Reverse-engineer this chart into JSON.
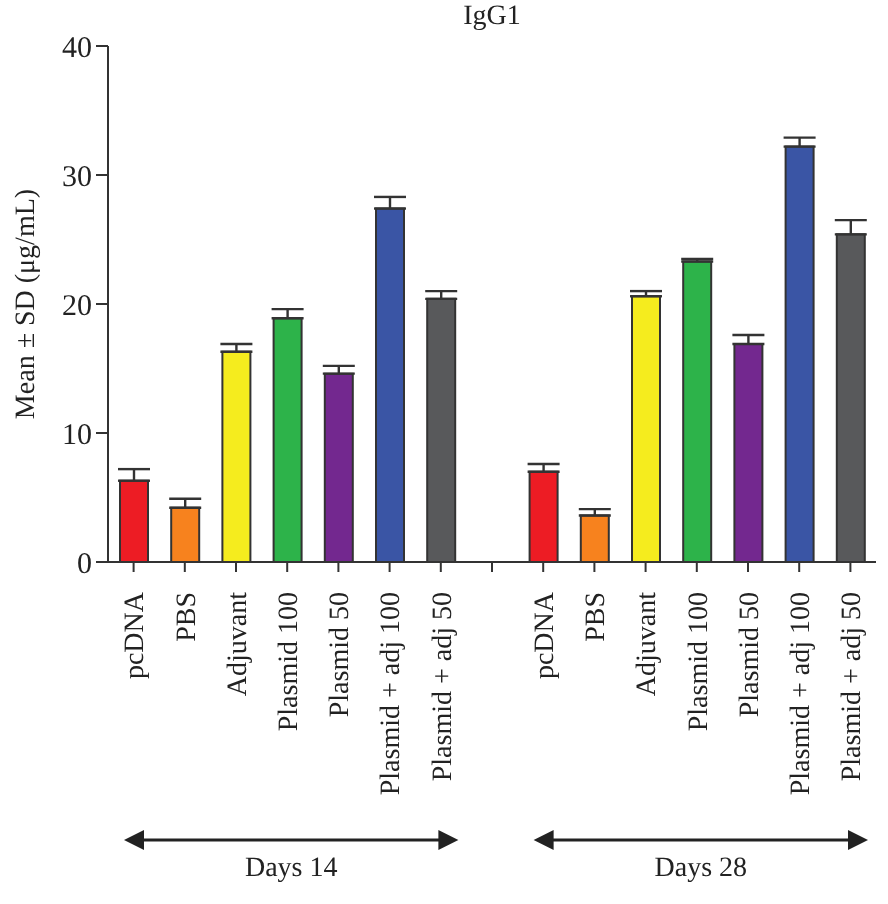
{
  "chart_data": {
    "type": "bar",
    "title": "IgG1",
    "ylabel": "Mean ± SD (μg/mL)",
    "categories": [
      "pcDNA",
      "PBS",
      "Adjuvant",
      "Plasmid 100",
      "Plasmid 50",
      "Plasmid + adj 100",
      "Plasmid + adj 50",
      null,
      "pcDNA",
      "PBS",
      "Adjuvant",
      "Plasmid 100",
      "Plasmid 50",
      "Plasmid + adj 100",
      "Plasmid + adj 50"
    ],
    "values": [
      6.3,
      4.2,
      16.3,
      18.9,
      14.6,
      27.4,
      20.4,
      null,
      7.0,
      3.6,
      20.6,
      23.3,
      16.9,
      32.2,
      25.4
    ],
    "errors": [
      0.9,
      0.7,
      0.6,
      0.7,
      0.6,
      0.9,
      0.6,
      null,
      0.6,
      0.5,
      0.4,
      0.2,
      0.7,
      0.7,
      1.1
    ],
    "colors": [
      "#ed1c24",
      "#f7821e",
      "#f5ec1e",
      "#2db34a",
      "#73288f",
      "#3a55a5",
      "#58595b",
      null,
      "#ed1c24",
      "#f7821e",
      "#f5ec1e",
      "#2db34a",
      "#73288f",
      "#3a55a5",
      "#58595b"
    ],
    "ylim": [
      0,
      40
    ],
    "yticks": [
      0,
      10,
      20,
      30,
      40
    ],
    "annotations": [
      "Days 14",
      "Days 28"
    ]
  }
}
